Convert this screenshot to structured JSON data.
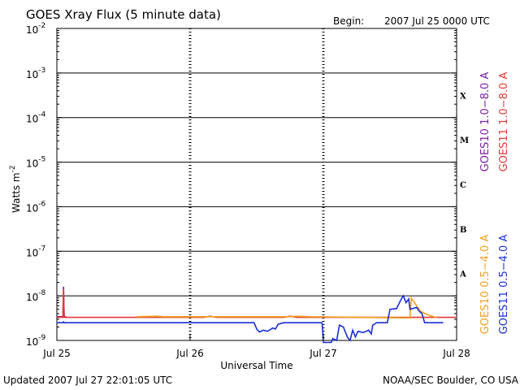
{
  "chart_data": {
    "type": "line",
    "title": "GOES Xray Flux (5 minute data)",
    "begin_label": "Begin:",
    "begin_value": "2007 Jul 25 0000 UTC",
    "xlabel": "Universal Time",
    "ylabel_base": "Watts m",
    "ylabel_exp": "-2",
    "y_scale": "log",
    "ylim": [
      1e-09,
      0.01
    ],
    "xlim_days": [
      0,
      3
    ],
    "x_ticks": [
      {
        "day": 0,
        "label": "Jul 25"
      },
      {
        "day": 1,
        "label": "Jul 26"
      },
      {
        "day": 2,
        "label": "Jul 27"
      },
      {
        "day": 3,
        "label": "Jul 28"
      }
    ],
    "y_ticks": [
      {
        "exp": -2,
        "base": "10",
        "sup": "-2"
      },
      {
        "exp": -3,
        "base": "10",
        "sup": "-3"
      },
      {
        "exp": -4,
        "base": "10",
        "sup": "-4"
      },
      {
        "exp": -5,
        "base": "10",
        "sup": "-5"
      },
      {
        "exp": -6,
        "base": "10",
        "sup": "-6"
      },
      {
        "exp": -7,
        "base": "10",
        "sup": "-7"
      },
      {
        "exp": -8,
        "base": "10",
        "sup": "-8"
      },
      {
        "exp": -9,
        "base": "10",
        "sup": "-9"
      }
    ],
    "flare_classes": [
      {
        "label": "X",
        "exp": -3.5
      },
      {
        "label": "M",
        "exp": -4.5
      },
      {
        "label": "C",
        "exp": -5.5
      },
      {
        "label": "B",
        "exp": -6.5
      },
      {
        "label": "A",
        "exp": -7.5
      }
    ],
    "legend_right": [
      {
        "name": "GOES10 1.0−8.0 A",
        "color": "#7b1fa2"
      },
      {
        "name": "GOES11 1.0−8.0 A",
        "color": "#e53935"
      },
      {
        "name": "GOES10 0.5−4.0 A",
        "color": "#f0a020"
      },
      {
        "name": "GOES11 0.5−4.0 A",
        "color": "#1a2fd6"
      }
    ],
    "series": [
      {
        "name": "GOES10 1.0−8.0 A",
        "color": "#7b1fa2",
        "points": [
          [
            0.0,
            3.4e-09
          ],
          [
            0.045,
            3.4e-09
          ],
          [
            0.05,
            1.6e-08
          ],
          [
            0.055,
            3.4e-09
          ],
          [
            0.07,
            3.4e-09
          ]
        ]
      },
      {
        "name": "GOES11 1.0−8.0 A",
        "color": "#e53935",
        "points": [
          [
            0.0,
            3.3e-09
          ],
          [
            0.045,
            3.3e-09
          ],
          [
            0.05,
            1.4e-08
          ],
          [
            0.055,
            3.3e-09
          ],
          [
            1.1,
            3.3e-09
          ],
          [
            1.15,
            3.5e-09
          ],
          [
            1.2,
            3.3e-09
          ],
          [
            1.7,
            3.3e-09
          ],
          [
            1.75,
            3.5e-09
          ],
          [
            1.8,
            3.3e-09
          ],
          [
            3.0,
            3.3e-09
          ]
        ]
      },
      {
        "name": "GOES10 0.5−4.0 A",
        "color": "#f0a020",
        "points": [
          [
            0.6,
            3.4e-09
          ],
          [
            0.75,
            3.5e-09
          ],
          [
            0.8,
            3.4e-09
          ],
          [
            1.75,
            3.4e-09
          ],
          [
            1.8,
            3.5e-09
          ],
          [
            1.9,
            3.4e-09
          ],
          [
            2.65,
            3.2e-09
          ],
          [
            2.66,
            9e-09
          ],
          [
            2.7,
            6e-09
          ],
          [
            2.73,
            4.5e-09
          ],
          [
            2.8,
            3.6e-09
          ],
          [
            2.85,
            3.3e-09
          ]
        ]
      },
      {
        "name": "GOES11 0.5−4.0 A",
        "color": "#1a2fd6",
        "points": [
          [
            0.0,
            2.5e-09
          ],
          [
            0.045,
            2.5e-09
          ],
          [
            0.05,
            2.6e-09
          ],
          [
            0.055,
            2.5e-09
          ],
          [
            1.48,
            2.5e-09
          ],
          [
            1.5,
            1.8e-09
          ],
          [
            1.52,
            1.55e-09
          ],
          [
            1.55,
            1.7e-09
          ],
          [
            1.58,
            1.6e-09
          ],
          [
            1.62,
            1.9e-09
          ],
          [
            1.64,
            1.8e-09
          ],
          [
            1.66,
            2.3e-09
          ],
          [
            1.7,
            2.5e-09
          ],
          [
            1.99,
            2.5e-09
          ],
          [
            2.0,
            9e-10
          ],
          [
            2.06,
            9e-10
          ],
          [
            2.07,
            1.1e-09
          ],
          [
            2.1,
            1e-09
          ],
          [
            2.12,
            2.2e-09
          ],
          [
            2.15,
            2e-09
          ],
          [
            2.18,
            1.2e-09
          ],
          [
            2.2,
            1e-09
          ],
          [
            2.22,
            1.7e-09
          ],
          [
            2.24,
            1.2e-09
          ],
          [
            2.26,
            1.6e-09
          ],
          [
            2.3,
            1.5e-09
          ],
          [
            2.34,
            1.7e-09
          ],
          [
            2.36,
            1.4e-09
          ],
          [
            2.37,
            2.2e-09
          ],
          [
            2.4,
            2.5e-09
          ],
          [
            2.48,
            2.5e-09
          ],
          [
            2.5,
            5e-09
          ],
          [
            2.55,
            5.2e-09
          ],
          [
            2.56,
            6e-09
          ],
          [
            2.58,
            8e-09
          ],
          [
            2.6,
            1e-08
          ],
          [
            2.62,
            7e-09
          ],
          [
            2.64,
            8.5e-09
          ],
          [
            2.65,
            5e-09
          ],
          [
            2.7,
            5.5e-09
          ],
          [
            2.72,
            4.5e-09
          ],
          [
            2.74,
            4e-09
          ],
          [
            2.76,
            2.5e-09
          ],
          [
            2.9,
            2.5e-09
          ]
        ]
      }
    ],
    "footer_left": "Updated 2007 Jul 27 22:01:05 UTC",
    "footer_right": "NOAA/SEC Boulder, CO USA"
  }
}
